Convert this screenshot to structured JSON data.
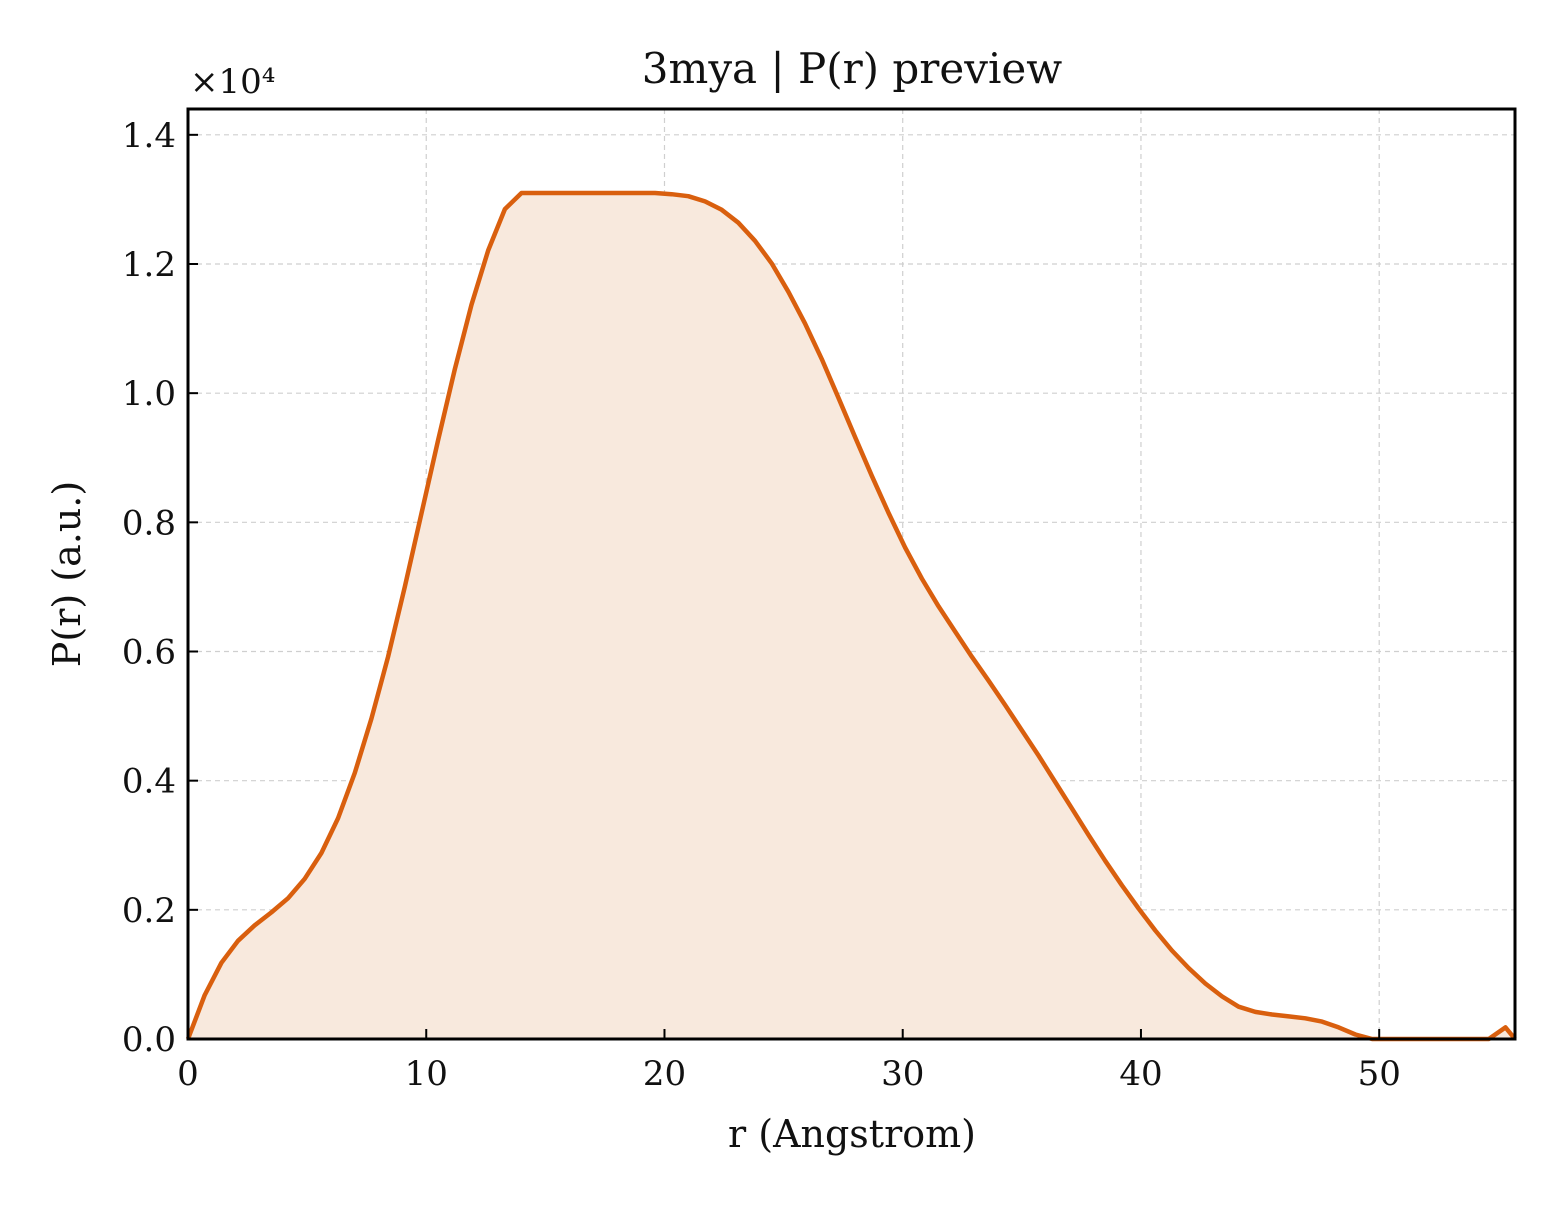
{
  "chart_data": {
    "type": "area",
    "title": "3mya | P(r) preview",
    "xlabel": "r (Angstrom)",
    "ylabel": "P(r) (a.u.)",
    "y_offset_label": "×10⁴",
    "xlim": [
      0,
      55.7
    ],
    "ylim": [
      0,
      1.44
    ],
    "xticks": [
      0,
      10,
      20,
      30,
      40,
      50
    ],
    "xtick_labels": [
      "0",
      "10",
      "20",
      "30",
      "40",
      "50"
    ],
    "yticks": [
      0,
      0.2,
      0.4,
      0.6,
      0.8,
      1.0,
      1.2,
      1.4
    ],
    "ytick_labels": [
      "0.0",
      "0.2",
      "0.4",
      "0.6",
      "0.8",
      "1.0",
      "1.2",
      "1.4"
    ],
    "grid": true,
    "colors": {
      "line": "#d95f0e",
      "fill": "#f8e9dd"
    },
    "series": [
      {
        "x": [
          0,
          0.7,
          1.4,
          2.1,
          2.8,
          3.5,
          4.2,
          4.9,
          5.6,
          6.3,
          7.0,
          7.7,
          8.4,
          9.1,
          9.8,
          10.5,
          11.2,
          11.9,
          12.6,
          13.3,
          14.0,
          14.7,
          15.4,
          16.1,
          16.8,
          17.5,
          18.2,
          18.9,
          19.6,
          20.3,
          21.0,
          21.7,
          22.4,
          23.1,
          23.8,
          24.5,
          25.2,
          25.9,
          26.6,
          27.3,
          28.0,
          28.7,
          29.4,
          30.1,
          30.8,
          31.5,
          32.2,
          32.9,
          33.6,
          34.3,
          35.0,
          35.7,
          36.4,
          37.1,
          37.8,
          38.5,
          39.2,
          39.9,
          40.6,
          41.3,
          42.0,
          42.7,
          43.4,
          44.1,
          44.8,
          45.5,
          46.2,
          46.9,
          47.6,
          48.3,
          49.0,
          49.7,
          50.4,
          51.1,
          51.8,
          52.5,
          53.2,
          53.9,
          54.6,
          55.3,
          55.7
        ],
        "y": [
          0.0,
          0.068,
          0.118,
          0.152,
          0.176,
          0.196,
          0.218,
          0.248,
          0.288,
          0.342,
          0.412,
          0.496,
          0.592,
          0.7,
          0.814,
          0.928,
          1.037,
          1.137,
          1.221,
          1.285,
          1.31,
          1.31,
          1.31,
          1.31,
          1.31,
          1.31,
          1.31,
          1.31,
          1.31,
          1.308,
          1.305,
          1.297,
          1.284,
          1.264,
          1.236,
          1.201,
          1.157,
          1.108,
          1.053,
          0.993,
          0.932,
          0.872,
          0.815,
          0.761,
          0.713,
          0.67,
          0.631,
          0.592,
          0.555,
          0.517,
          0.478,
          0.439,
          0.398,
          0.357,
          0.316,
          0.276,
          0.238,
          0.202,
          0.168,
          0.137,
          0.11,
          0.086,
          0.066,
          0.05,
          0.042,
          0.038,
          0.035,
          0.032,
          0.027,
          0.018,
          0.007,
          0.0,
          0.0,
          0.0,
          0.0,
          0.0,
          0.0,
          0.0,
          0.0,
          0.018,
          0.0
        ]
      }
    ]
  }
}
